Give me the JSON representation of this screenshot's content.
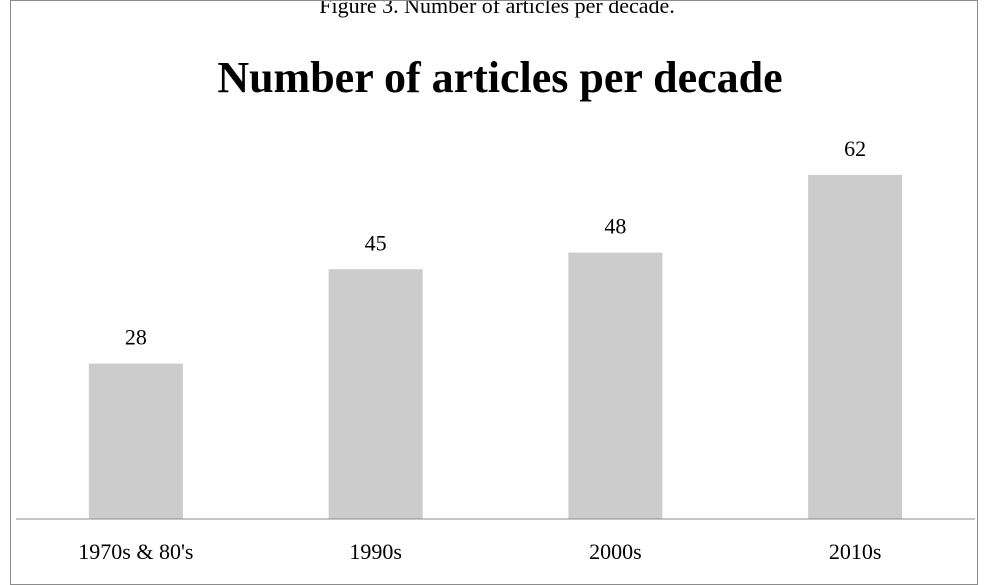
{
  "figure_caption": "Figure 3. Number of articles per decade.",
  "chart_data": {
    "type": "bar",
    "title": "Number of articles per decade",
    "categories": [
      "1970s & 80's",
      "1990s",
      "2000s",
      "2010s"
    ],
    "values": [
      28,
      45,
      48,
      62
    ],
    "xlabel": "",
    "ylabel": "",
    "ylim": [
      0,
      70
    ],
    "grid": false,
    "data_labels": true,
    "bar_color": "#cccccc",
    "axis_color": "#8c8c8c"
  }
}
